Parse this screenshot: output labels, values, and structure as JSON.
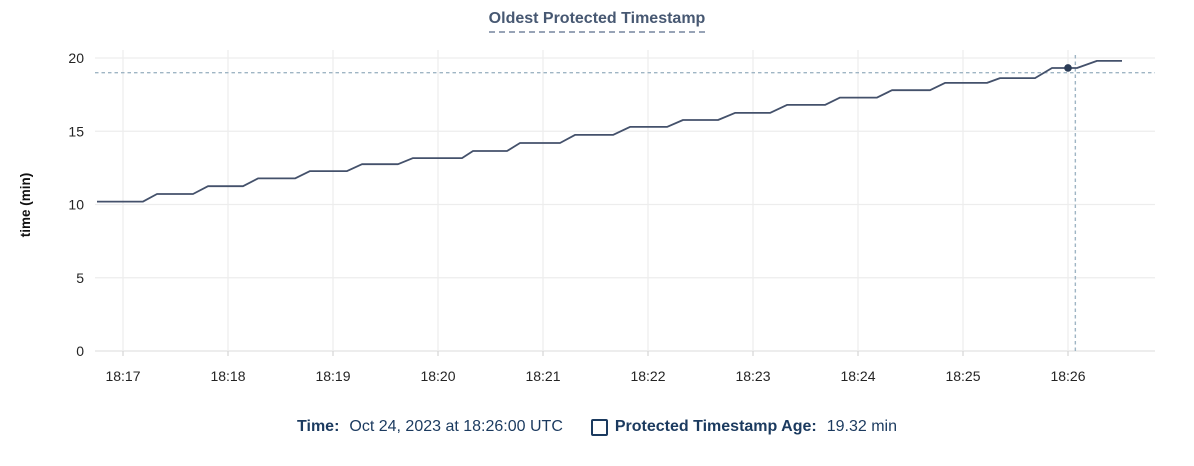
{
  "header": {
    "title": "Oldest Protected Timestamp"
  },
  "legend": {
    "time_label": "Time:",
    "time_value": "Oct 24, 2023 at 18:26:00 UTC",
    "series_label": "Protected Timestamp Age:",
    "series_value": "19.32 min"
  },
  "chart_data": {
    "type": "line",
    "title": "Oldest Protected Timestamp",
    "xlabel": "",
    "ylabel": "time (min)",
    "x_unit": "minutes after 18:00 UTC",
    "xlim": [
      16.73,
      26.86
    ],
    "ylim": [
      0,
      20
    ],
    "grid": true,
    "legend_position": "bottom",
    "x_ticks": [
      {
        "value": 17,
        "label": "18:17"
      },
      {
        "value": 18,
        "label": "18:18"
      },
      {
        "value": 19,
        "label": "18:19"
      },
      {
        "value": 20,
        "label": "18:20"
      },
      {
        "value": 21,
        "label": "18:21"
      },
      {
        "value": 22,
        "label": "18:22"
      },
      {
        "value": 23,
        "label": "18:23"
      },
      {
        "value": 24,
        "label": "18:24"
      },
      {
        "value": 25,
        "label": "18:25"
      },
      {
        "value": 26,
        "label": "18:26"
      }
    ],
    "y_ticks": [
      {
        "value": 0,
        "label": "0"
      },
      {
        "value": 5,
        "label": "5"
      },
      {
        "value": 10,
        "label": "10"
      },
      {
        "value": 15,
        "label": "15"
      },
      {
        "value": 20,
        "label": "20"
      }
    ],
    "series": [
      {
        "name": "Protected Timestamp Age",
        "unit": "min",
        "points": [
          [
            16.752,
            10.2
          ],
          [
            17.19,
            10.2
          ],
          [
            17.324,
            10.72
          ],
          [
            17.667,
            10.72
          ],
          [
            17.81,
            11.25
          ],
          [
            18.143,
            11.25
          ],
          [
            18.286,
            11.78
          ],
          [
            18.638,
            11.78
          ],
          [
            18.781,
            12.28
          ],
          [
            19.133,
            12.28
          ],
          [
            19.276,
            12.75
          ],
          [
            19.619,
            12.75
          ],
          [
            19.762,
            13.17
          ],
          [
            20.229,
            13.17
          ],
          [
            20.333,
            13.65
          ],
          [
            20.657,
            13.65
          ],
          [
            20.781,
            14.2
          ],
          [
            21.162,
            14.2
          ],
          [
            21.305,
            14.75
          ],
          [
            21.667,
            14.75
          ],
          [
            21.829,
            15.3
          ],
          [
            22.181,
            15.3
          ],
          [
            22.333,
            15.77
          ],
          [
            22.667,
            15.77
          ],
          [
            22.829,
            16.25
          ],
          [
            23.162,
            16.25
          ],
          [
            23.324,
            16.8
          ],
          [
            23.686,
            16.8
          ],
          [
            23.829,
            17.3
          ],
          [
            24.181,
            17.3
          ],
          [
            24.324,
            17.8
          ],
          [
            24.686,
            17.8
          ],
          [
            24.829,
            18.3
          ],
          [
            25.229,
            18.3
          ],
          [
            25.352,
            18.63
          ],
          [
            25.686,
            18.63
          ],
          [
            25.848,
            19.32
          ],
          [
            26.086,
            19.32
          ],
          [
            26.276,
            19.8
          ],
          [
            26.514,
            19.8
          ]
        ]
      }
    ],
    "hover": {
      "point_x": 26.0,
      "point_y": 19.32,
      "point_time_label": "18:26:00",
      "crosshair_x": 26.07,
      "crosshair_y": 19.0
    },
    "colors": {
      "line": "#44516b",
      "dot": "#2c3d57",
      "crosshair": "#9fb5c4",
      "grid": "#ededed",
      "axis": "#e2e2e2",
      "tick_mark": "#d8d8d8",
      "tick_text": "#242424",
      "axis_title_text": "#111111",
      "title": "#475872",
      "title_underline": "#97a3b6",
      "legend_text": "#1b3a5f"
    }
  }
}
